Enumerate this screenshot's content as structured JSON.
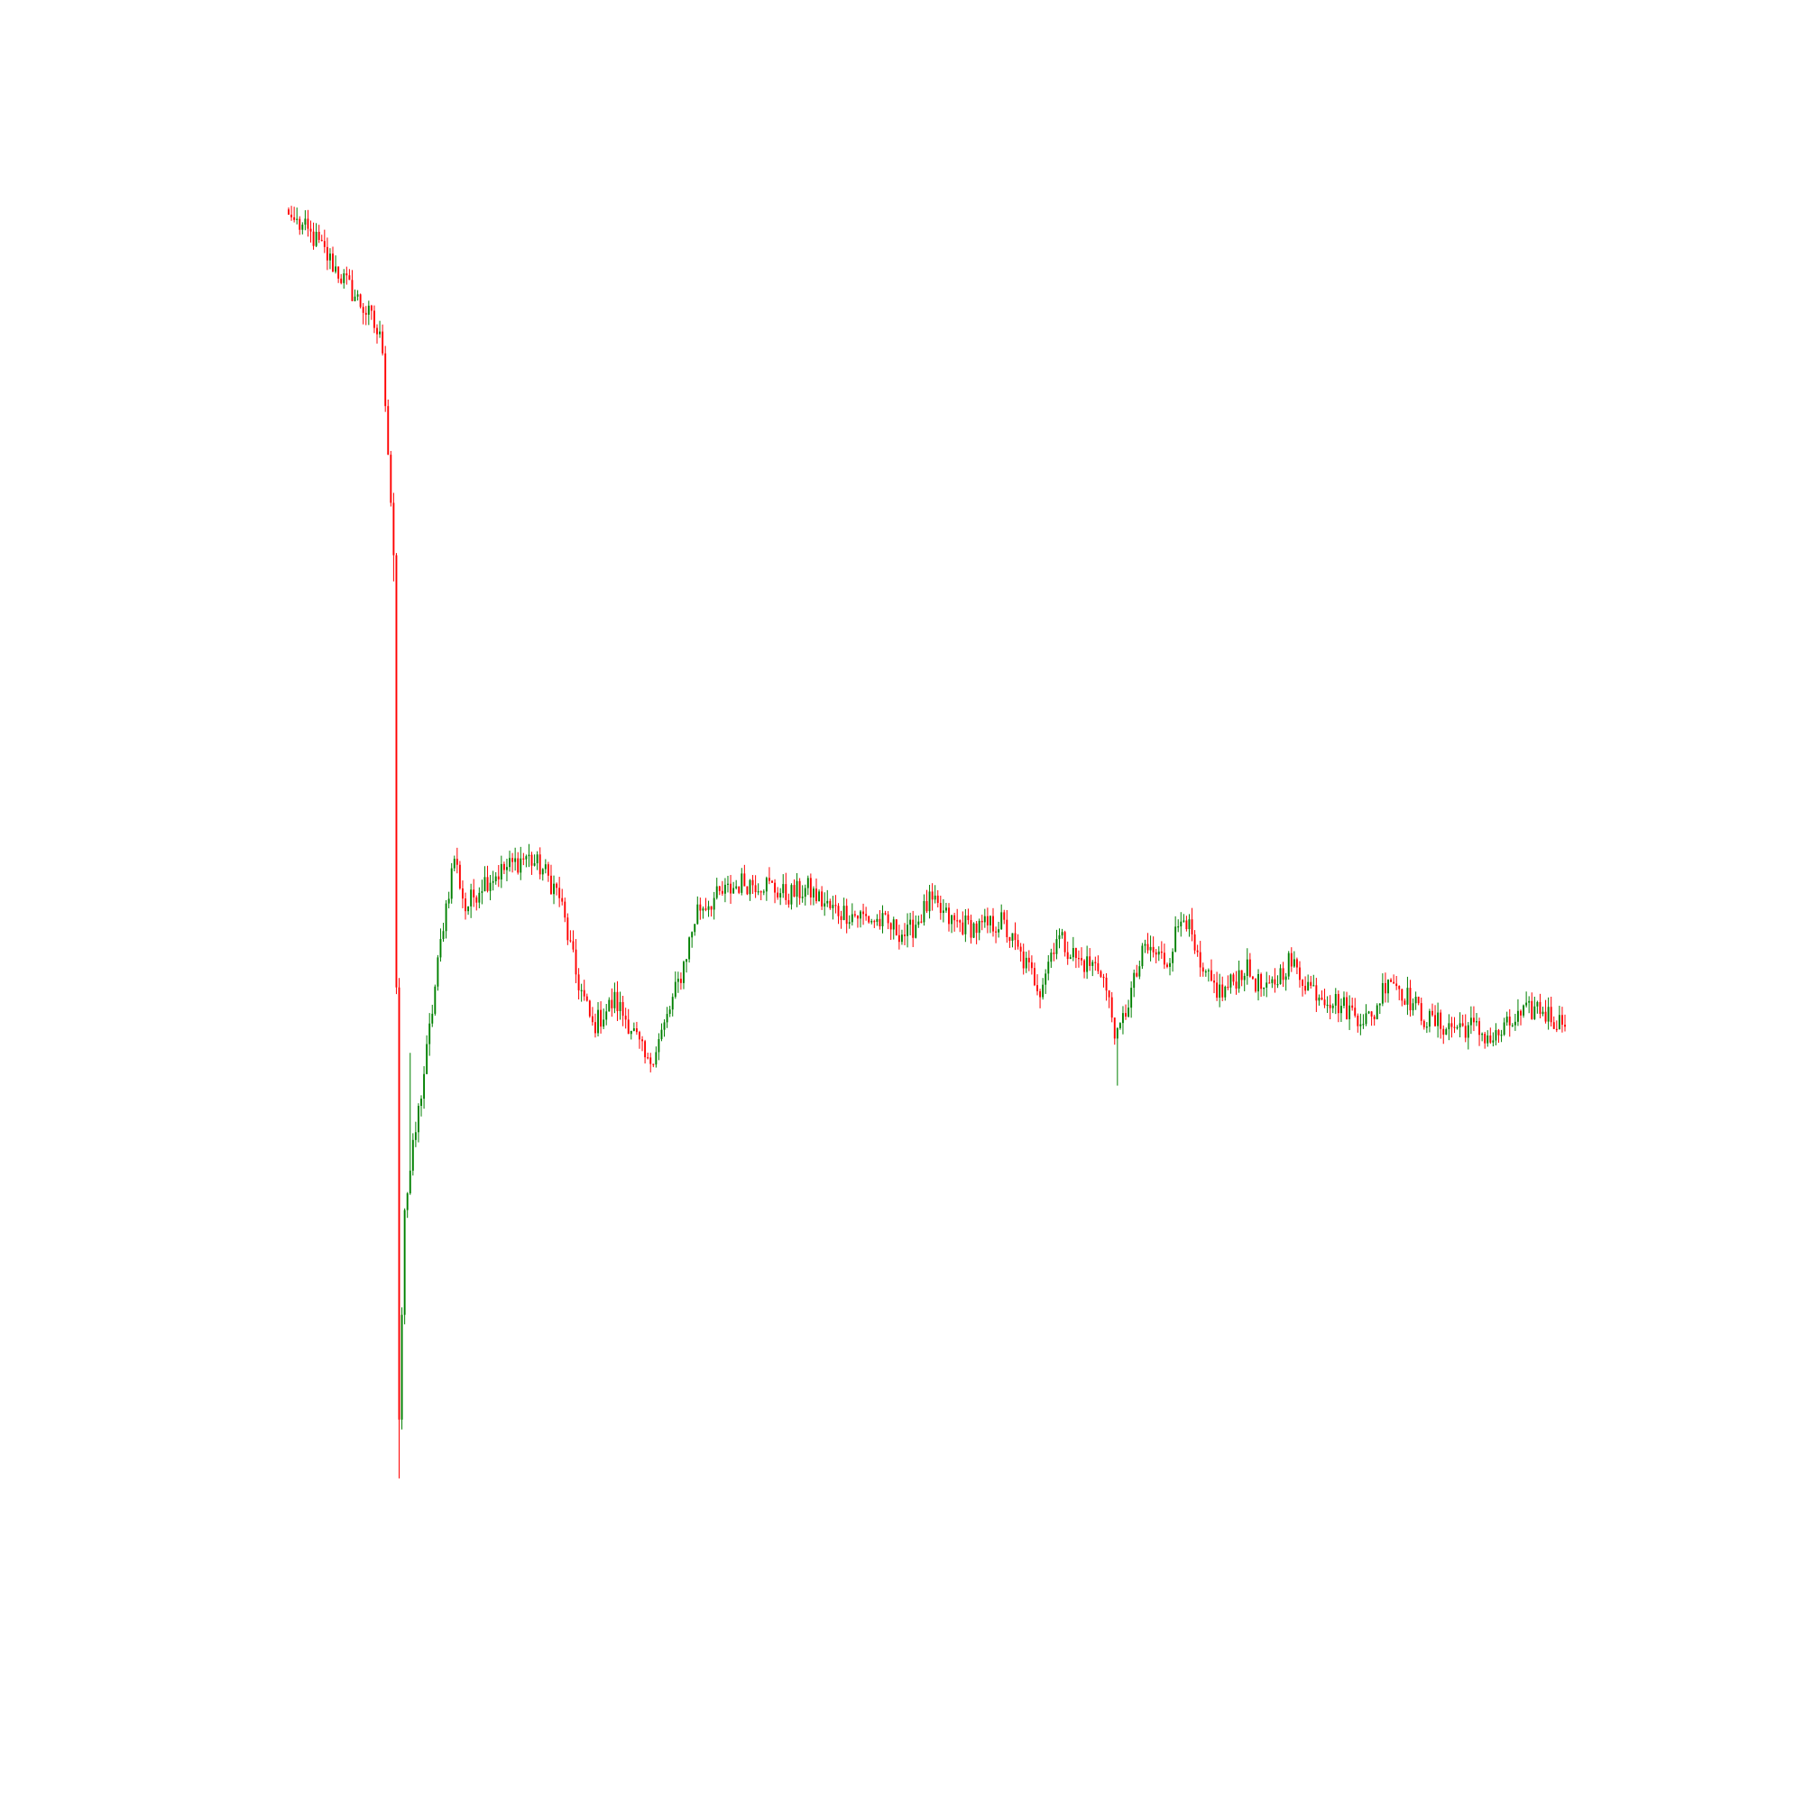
{
  "chart_data": {
    "type": "candlestick",
    "title": "",
    "xlabel": "",
    "ylabel": "",
    "axes_visible": false,
    "grid": false,
    "legend": "none",
    "ylim": [
      0,
      100
    ],
    "colors": {
      "up": "#008000",
      "down": "#ff0000"
    },
    "anchors": [
      [
        0,
        100
      ],
      [
        10,
        98
      ],
      [
        20,
        95
      ],
      [
        30,
        92
      ],
      [
        34,
        90
      ],
      [
        38,
        74
      ],
      [
        40,
        8
      ],
      [
        42,
        24
      ],
      [
        46,
        30
      ],
      [
        50,
        36
      ],
      [
        56,
        46
      ],
      [
        60,
        51
      ],
      [
        64,
        47
      ],
      [
        70,
        49
      ],
      [
        78,
        50
      ],
      [
        86,
        51
      ],
      [
        92,
        50
      ],
      [
        98,
        48
      ],
      [
        104,
        42
      ],
      [
        110,
        38
      ],
      [
        118,
        40
      ],
      [
        124,
        38
      ],
      [
        130,
        35
      ],
      [
        136,
        38
      ],
      [
        142,
        42
      ],
      [
        148,
        47
      ],
      [
        156,
        48
      ],
      [
        164,
        49
      ],
      [
        172,
        49
      ],
      [
        180,
        48
      ],
      [
        188,
        48.5
      ],
      [
        196,
        47
      ],
      [
        206,
        46.5
      ],
      [
        214,
        46
      ],
      [
        224,
        45
      ],
      [
        232,
        47.5
      ],
      [
        240,
        46
      ],
      [
        250,
        45.5
      ],
      [
        258,
        46
      ],
      [
        266,
        43
      ],
      [
        272,
        41
      ],
      [
        278,
        45
      ],
      [
        286,
        43
      ],
      [
        294,
        42.5
      ],
      [
        300,
        37
      ],
      [
        304,
        40
      ],
      [
        310,
        44
      ],
      [
        318,
        43
      ],
      [
        324,
        47
      ],
      [
        330,
        42
      ],
      [
        338,
        40.5
      ],
      [
        346,
        42.5
      ],
      [
        354,
        40.5
      ],
      [
        362,
        43
      ],
      [
        370,
        41
      ],
      [
        378,
        40
      ],
      [
        386,
        39
      ],
      [
        392,
        38.5
      ],
      [
        398,
        42
      ],
      [
        404,
        40.5
      ],
      [
        412,
        38.5
      ],
      [
        420,
        38
      ],
      [
        428,
        38
      ],
      [
        436,
        37
      ],
      [
        444,
        38.5
      ],
      [
        452,
        39.5
      ],
      [
        462,
        38
      ]
    ],
    "candle_count": 463
  }
}
